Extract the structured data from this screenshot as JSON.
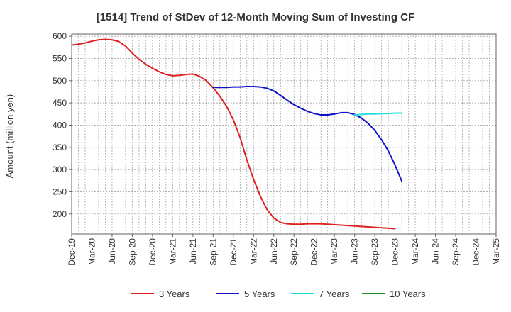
{
  "chart_data": {
    "type": "line",
    "title": "[1514]  Trend of StDev of 12-Month Moving Sum of Investing CF",
    "xlabel": "",
    "ylabel": "Amount (million yen)",
    "ylim": [
      155,
      605
    ],
    "yticks": [
      200,
      250,
      300,
      350,
      400,
      450,
      500,
      550,
      600
    ],
    "x_tick_labels": [
      "Dec-19",
      "Mar-20",
      "Jun-20",
      "Sep-20",
      "Dec-20",
      "Mar-21",
      "Jun-21",
      "Sep-21",
      "Dec-21",
      "Mar-22",
      "Jun-22",
      "Sep-22",
      "Dec-22",
      "Mar-23",
      "Jun-23",
      "Sep-23",
      "Dec-23",
      "Mar-24",
      "Jun-24",
      "Sep-24",
      "Dec-24",
      "Mar-25"
    ],
    "grid": true,
    "legend_position": "bottom",
    "series": [
      {
        "name": "3 Years",
        "color": "#dd2222",
        "points": [
          [
            "Dec-19",
            580
          ],
          [
            "Jan-20",
            582
          ],
          [
            "Feb-20",
            585
          ],
          [
            "Mar-20",
            589
          ],
          [
            "Apr-20",
            592
          ],
          [
            "May-20",
            593
          ],
          [
            "Jun-20",
            592
          ],
          [
            "Jul-20",
            588
          ],
          [
            "Aug-20",
            578
          ],
          [
            "Sep-20",
            562
          ],
          [
            "Oct-20",
            548
          ],
          [
            "Nov-20",
            537
          ],
          [
            "Dec-20",
            528
          ],
          [
            "Jan-21",
            520
          ],
          [
            "Feb-21",
            514
          ],
          [
            "Mar-21",
            511
          ],
          [
            "Apr-21",
            512
          ],
          [
            "May-21",
            514
          ],
          [
            "Jun-21",
            515
          ],
          [
            "Jul-21",
            510
          ],
          [
            "Aug-21",
            500
          ],
          [
            "Sep-21",
            484
          ],
          [
            "Oct-21",
            465
          ],
          [
            "Nov-21",
            442
          ],
          [
            "Dec-21",
            412
          ],
          [
            "Jan-22",
            372
          ],
          [
            "Feb-22",
            322
          ],
          [
            "Mar-22",
            278
          ],
          [
            "Apr-22",
            240
          ],
          [
            "May-22",
            210
          ],
          [
            "Jun-22",
            191
          ],
          [
            "Jul-22",
            181
          ],
          [
            "Aug-22",
            178
          ],
          [
            "Sep-22",
            177
          ],
          [
            "Oct-22",
            177
          ],
          [
            "Nov-22",
            178
          ],
          [
            "Dec-22",
            178
          ],
          [
            "Jan-23",
            178
          ],
          [
            "Feb-23",
            177
          ],
          [
            "Mar-23",
            176
          ],
          [
            "Apr-23",
            175
          ],
          [
            "May-23",
            174
          ],
          [
            "Jun-23",
            173
          ],
          [
            "Jul-23",
            172
          ],
          [
            "Aug-23",
            171
          ],
          [
            "Sep-23",
            170
          ],
          [
            "Oct-23",
            169
          ],
          [
            "Nov-23",
            168
          ],
          [
            "Dec-23",
            167
          ]
        ]
      },
      {
        "name": "5 Years",
        "color": "#1111cc",
        "points": [
          [
            "Sep-21",
            485
          ],
          [
            "Oct-21",
            485
          ],
          [
            "Nov-21",
            485
          ],
          [
            "Dec-21",
            486
          ],
          [
            "Jan-22",
            486
          ],
          [
            "Feb-22",
            487
          ],
          [
            "Mar-22",
            487
          ],
          [
            "Apr-22",
            486
          ],
          [
            "May-22",
            483
          ],
          [
            "Jun-22",
            477
          ],
          [
            "Jul-22",
            467
          ],
          [
            "Aug-22",
            456
          ],
          [
            "Sep-22",
            446
          ],
          [
            "Oct-22",
            438
          ],
          [
            "Nov-22",
            431
          ],
          [
            "Dec-22",
            426
          ],
          [
            "Jan-23",
            423
          ],
          [
            "Feb-23",
            423
          ],
          [
            "Mar-23",
            425
          ],
          [
            "Apr-23",
            428
          ],
          [
            "May-23",
            428
          ],
          [
            "Jun-23",
            424
          ],
          [
            "Jul-23",
            416
          ],
          [
            "Aug-23",
            404
          ],
          [
            "Sep-23",
            388
          ],
          [
            "Oct-23",
            367
          ],
          [
            "Nov-23",
            342
          ],
          [
            "Dec-23",
            310
          ],
          [
            "Jan-24",
            274
          ]
        ]
      },
      {
        "name": "7 Years",
        "color": "#22dddd",
        "points": [
          [
            "Jun-23",
            423
          ],
          [
            "Jul-23",
            424
          ],
          [
            "Aug-23",
            425
          ],
          [
            "Sep-23",
            425
          ],
          [
            "Oct-23",
            426
          ],
          [
            "Nov-23",
            426
          ],
          [
            "Dec-23",
            427
          ],
          [
            "Jan-24",
            427
          ]
        ]
      },
      {
        "name": "10 Years",
        "color": "#228822",
        "points": []
      }
    ]
  }
}
